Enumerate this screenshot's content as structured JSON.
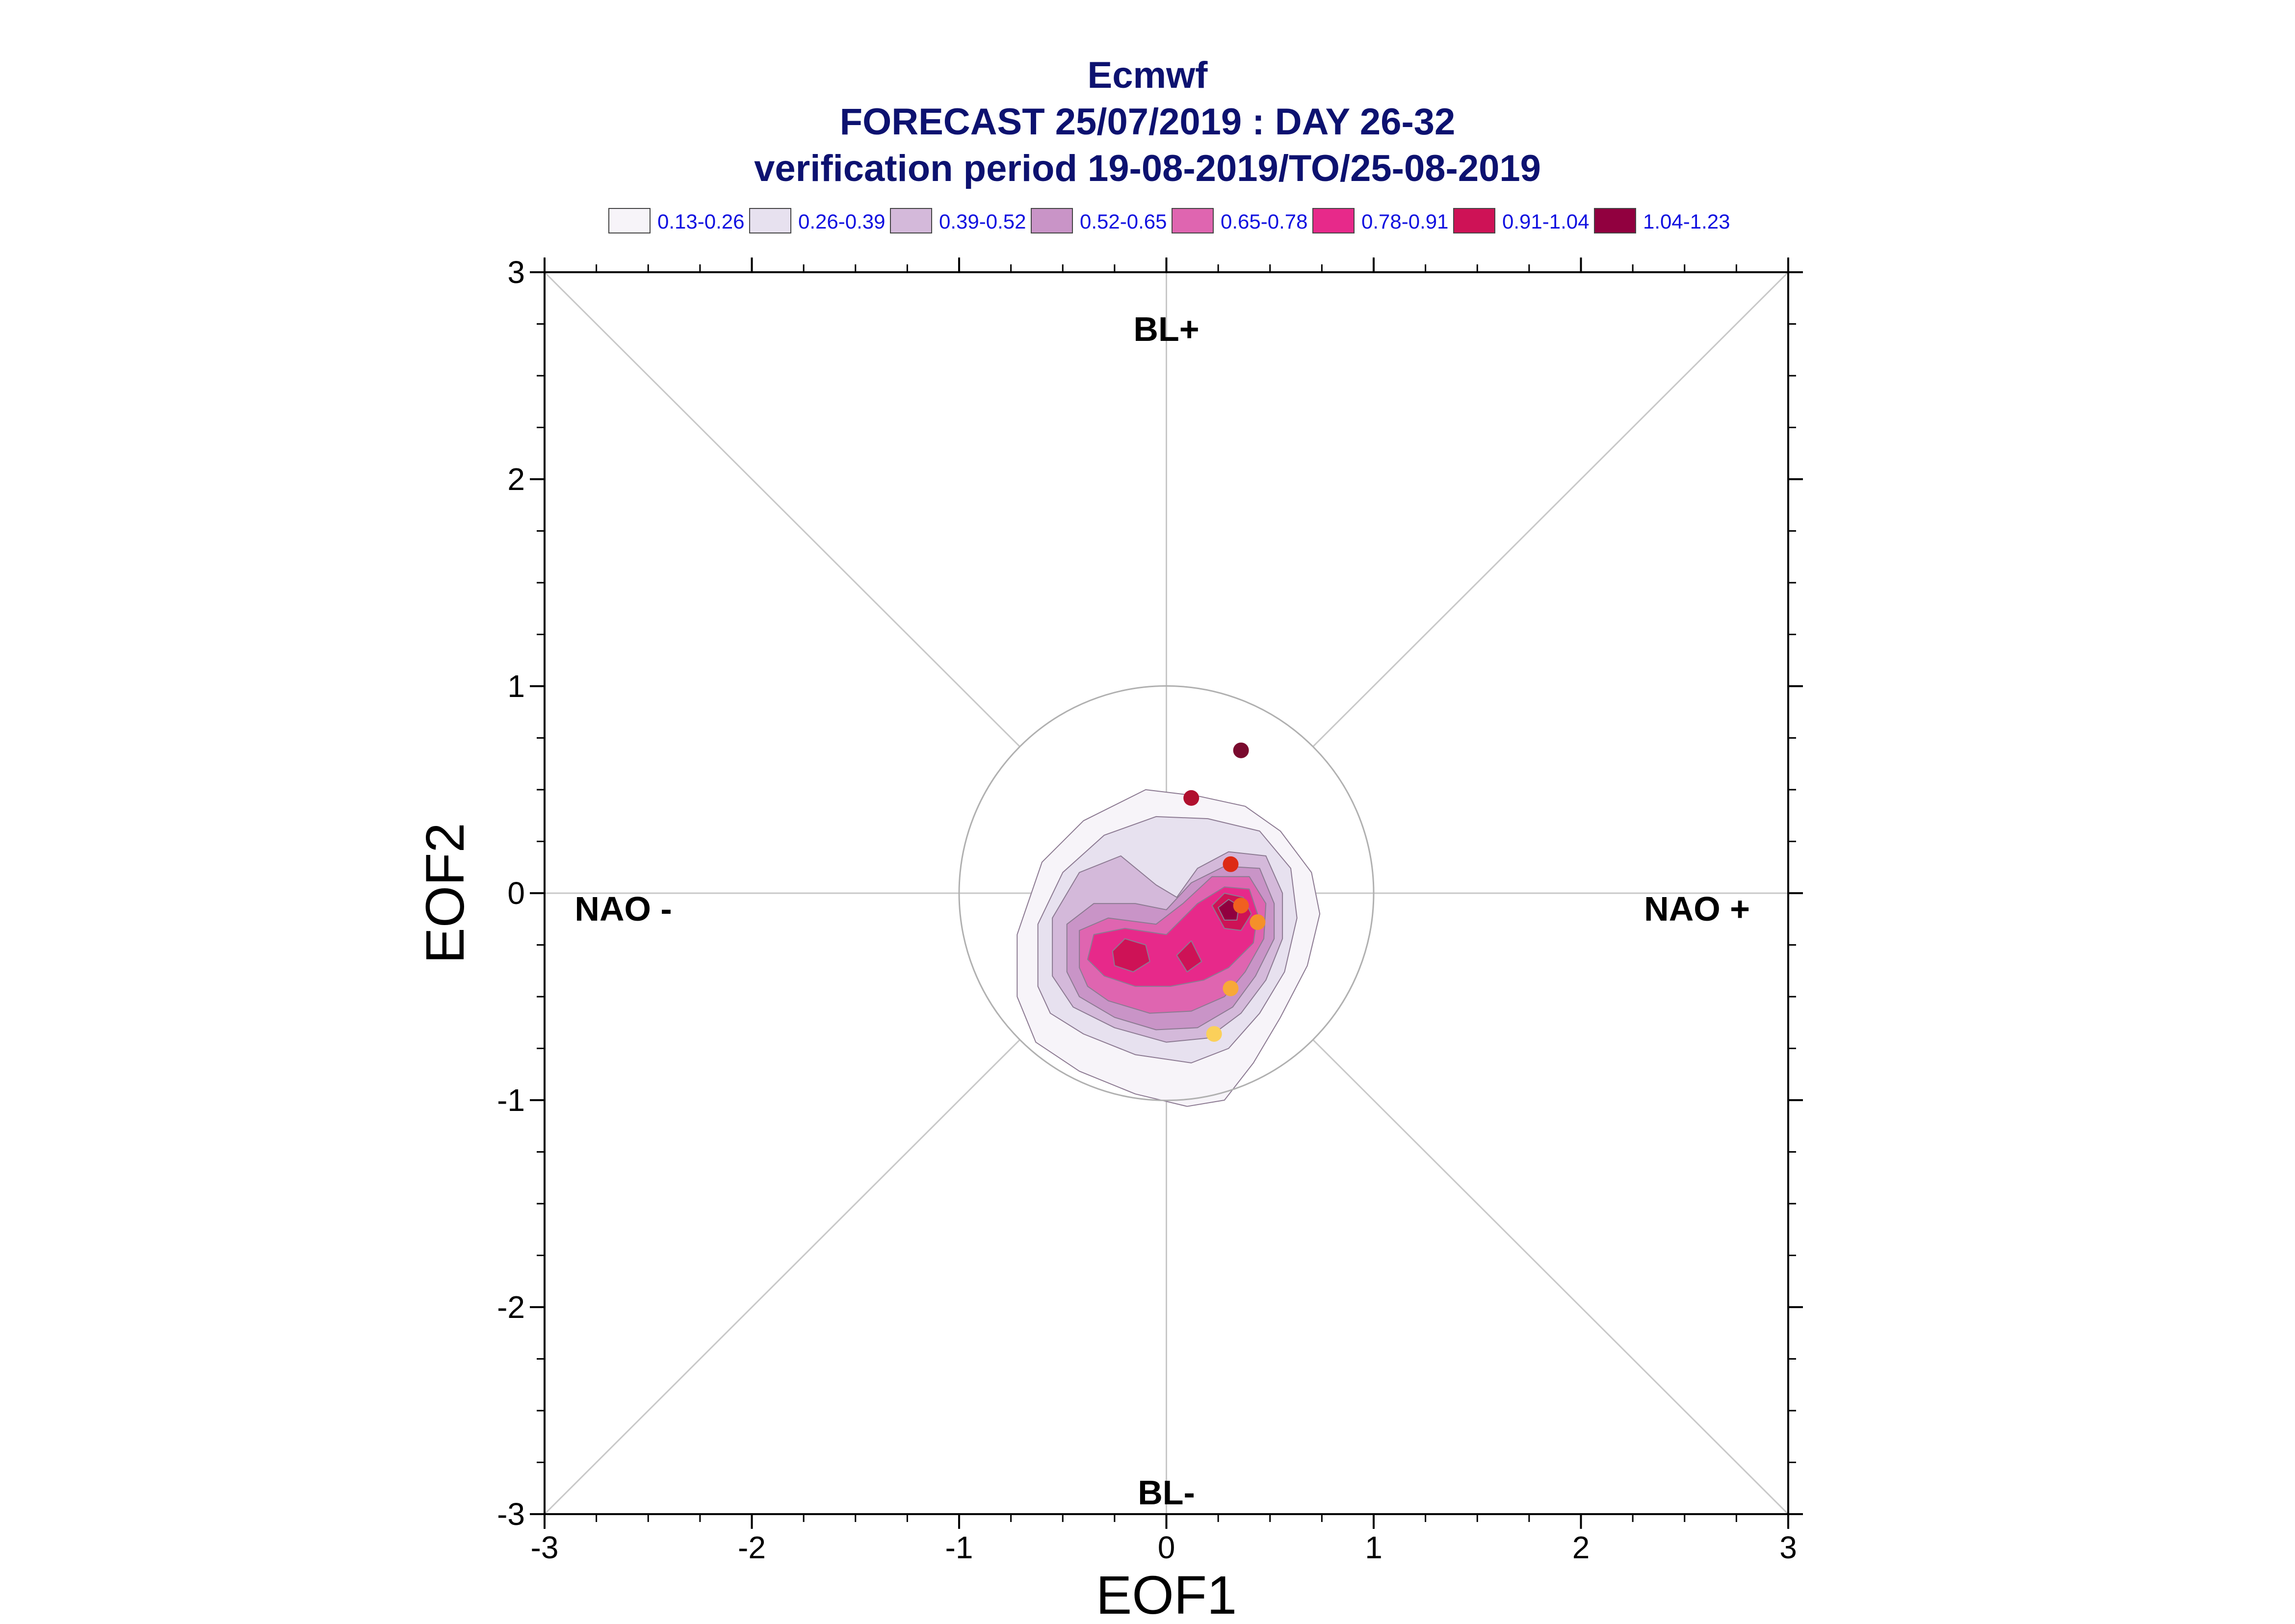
{
  "header": {
    "title": "Ecmwf",
    "subtitle": "FORECAST 25/07/2019 : DAY 26-32",
    "period": "verification period 19-08-2019/TO/25-08-2019"
  },
  "legend": [
    {
      "label": "0.13-0.26",
      "color": "#f7f4f9"
    },
    {
      "label": "0.26-0.39",
      "color": "#e7e1ef"
    },
    {
      "label": "0.39-0.52",
      "color": "#d4b9da"
    },
    {
      "label": "0.52-0.65",
      "color": "#c994c7"
    },
    {
      "label": "0.65-0.78",
      "color": "#df65b0"
    },
    {
      "label": "0.78-0.91",
      "color": "#e7298a"
    },
    {
      "label": "0.91-1.04",
      "color": "#ce1256"
    },
    {
      "label": "1.04-1.23",
      "color": "#91003f"
    }
  ],
  "chart_data": {
    "type": "scatter",
    "xlabel": "EOF1",
    "ylabel": "EOF2",
    "xlim": [
      -3,
      3
    ],
    "ylim": [
      -3,
      3
    ],
    "xticks": [
      "-3",
      "-2",
      "-1",
      "0",
      "1",
      "2",
      "3"
    ],
    "yticks": [
      "-3",
      "-2",
      "-1",
      "0",
      "1",
      "2",
      "3"
    ],
    "regime_labels": {
      "top": "BL+",
      "bottom": "BL-",
      "left": "NAO -",
      "right": "NAO +"
    },
    "unit_circle_radius": 1,
    "density_contours": [
      {
        "level": "0.13-0.26",
        "points": [
          [
            -0.72,
            -0.5
          ],
          [
            -0.72,
            -0.2
          ],
          [
            -0.6,
            0.15
          ],
          [
            -0.4,
            0.35
          ],
          [
            -0.1,
            0.5
          ],
          [
            0.15,
            0.47
          ],
          [
            0.38,
            0.42
          ],
          [
            0.55,
            0.3
          ],
          [
            0.7,
            0.1
          ],
          [
            0.74,
            -0.1
          ],
          [
            0.68,
            -0.35
          ],
          [
            0.55,
            -0.6
          ],
          [
            0.42,
            -0.82
          ],
          [
            0.28,
            -1.0
          ],
          [
            0.1,
            -1.03
          ],
          [
            -0.15,
            -0.97
          ],
          [
            -0.42,
            -0.86
          ],
          [
            -0.63,
            -0.72
          ]
        ]
      },
      {
        "level": "0.26-0.39",
        "points": [
          [
            -0.62,
            -0.45
          ],
          [
            -0.62,
            -0.15
          ],
          [
            -0.5,
            0.1
          ],
          [
            -0.3,
            0.28
          ],
          [
            -0.05,
            0.37
          ],
          [
            0.2,
            0.36
          ],
          [
            0.45,
            0.3
          ],
          [
            0.6,
            0.12
          ],
          [
            0.63,
            -0.12
          ],
          [
            0.57,
            -0.38
          ],
          [
            0.45,
            -0.58
          ],
          [
            0.3,
            -0.75
          ],
          [
            0.12,
            -0.82
          ],
          [
            -0.15,
            -0.78
          ],
          [
            -0.4,
            -0.68
          ],
          [
            -0.56,
            -0.58
          ]
        ]
      },
      {
        "level": "0.39-0.52",
        "points": [
          [
            -0.55,
            -0.4
          ],
          [
            -0.55,
            -0.12
          ],
          [
            -0.42,
            0.1
          ],
          [
            -0.22,
            0.18
          ],
          [
            -0.05,
            0.04
          ],
          [
            0.05,
            -0.02
          ],
          [
            0.15,
            0.12
          ],
          [
            0.3,
            0.2
          ],
          [
            0.48,
            0.18
          ],
          [
            0.56,
            0.0
          ],
          [
            0.56,
            -0.22
          ],
          [
            0.48,
            -0.42
          ],
          [
            0.36,
            -0.58
          ],
          [
            0.2,
            -0.7
          ],
          [
            0.0,
            -0.72
          ],
          [
            -0.25,
            -0.65
          ],
          [
            -0.45,
            -0.55
          ]
        ]
      },
      {
        "level": "0.52-0.65",
        "points": [
          [
            -0.48,
            -0.38
          ],
          [
            -0.48,
            -0.15
          ],
          [
            -0.35,
            -0.05
          ],
          [
            -0.15,
            -0.05
          ],
          [
            0.0,
            -0.08
          ],
          [
            0.12,
            0.05
          ],
          [
            0.28,
            0.13
          ],
          [
            0.45,
            0.12
          ],
          [
            0.52,
            -0.05
          ],
          [
            0.52,
            -0.22
          ],
          [
            0.43,
            -0.4
          ],
          [
            0.32,
            -0.55
          ],
          [
            0.15,
            -0.65
          ],
          [
            -0.05,
            -0.66
          ],
          [
            -0.25,
            -0.6
          ],
          [
            -0.42,
            -0.5
          ]
        ]
      },
      {
        "level": "0.65-0.78",
        "points": [
          [
            -0.42,
            -0.36
          ],
          [
            -0.42,
            -0.18
          ],
          [
            -0.28,
            -0.12
          ],
          [
            -0.05,
            -0.15
          ],
          [
            0.08,
            -0.05
          ],
          [
            0.22,
            0.08
          ],
          [
            0.4,
            0.08
          ],
          [
            0.48,
            -0.05
          ],
          [
            0.47,
            -0.22
          ],
          [
            0.38,
            -0.38
          ],
          [
            0.28,
            -0.5
          ],
          [
            0.12,
            -0.57
          ],
          [
            -0.08,
            -0.58
          ],
          [
            -0.28,
            -0.52
          ],
          [
            -0.38,
            -0.45
          ]
        ]
      },
      {
        "level": "0.78-0.91",
        "points": [
          [
            -0.38,
            -0.32
          ],
          [
            -0.35,
            -0.2
          ],
          [
            -0.2,
            -0.17
          ],
          [
            0.0,
            -0.2
          ],
          [
            0.15,
            -0.05
          ],
          [
            0.28,
            0.03
          ],
          [
            0.4,
            0.02
          ],
          [
            0.44,
            -0.1
          ],
          [
            0.42,
            -0.24
          ],
          [
            0.3,
            -0.36
          ],
          [
            0.18,
            -0.42
          ],
          [
            0.02,
            -0.45
          ],
          [
            -0.15,
            -0.45
          ],
          [
            -0.3,
            -0.4
          ]
        ]
      },
      {
        "level": "0.91-1.04",
        "points": [
          [
            0.22,
            -0.06
          ],
          [
            0.28,
            0.0
          ],
          [
            0.37,
            -0.02
          ],
          [
            0.41,
            -0.1
          ],
          [
            0.36,
            -0.18
          ],
          [
            0.28,
            -0.17
          ]
        ]
      },
      {
        "level": "0.91-1.04",
        "points": [
          [
            -0.26,
            -0.28
          ],
          [
            -0.2,
            -0.22
          ],
          [
            -0.1,
            -0.25
          ],
          [
            -0.08,
            -0.33
          ],
          [
            -0.16,
            -0.38
          ],
          [
            -0.25,
            -0.35
          ]
        ]
      },
      {
        "level": "0.91-1.04",
        "points": [
          [
            0.05,
            -0.3
          ],
          [
            0.12,
            -0.23
          ],
          [
            0.17,
            -0.33
          ],
          [
            0.1,
            -0.38
          ]
        ]
      },
      {
        "level": "1.04-1.23",
        "points": [
          [
            0.25,
            -0.07
          ],
          [
            0.3,
            -0.03
          ],
          [
            0.35,
            -0.06
          ],
          [
            0.34,
            -0.13
          ],
          [
            0.28,
            -0.13
          ]
        ]
      }
    ],
    "points": [
      {
        "x": 0.36,
        "y": 0.69,
        "color": "#7a0a2e"
      },
      {
        "x": 0.12,
        "y": 0.46,
        "color": "#b0102e"
      },
      {
        "x": 0.31,
        "y": 0.14,
        "color": "#dd2a14"
      },
      {
        "x": 0.36,
        "y": -0.06,
        "color": "#f06020"
      },
      {
        "x": 0.44,
        "y": -0.14,
        "color": "#f5902a"
      },
      {
        "x": 0.31,
        "y": -0.46,
        "color": "#f8a838"
      },
      {
        "x": 0.23,
        "y": -0.68,
        "color": "#fbd05a"
      }
    ]
  }
}
